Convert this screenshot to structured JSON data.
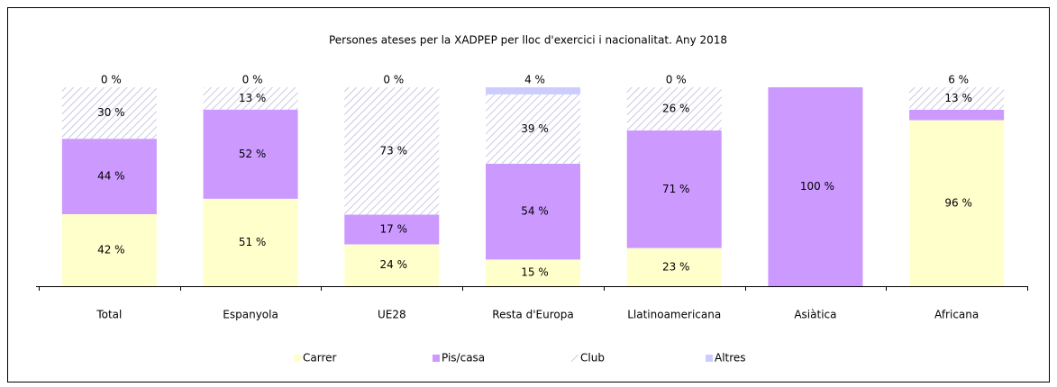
{
  "chart_data": {
    "type": "bar",
    "stacked": true,
    "normalize": true,
    "title": "Persones ateses per la XADPEP per lloc d'exercici i nacionalitat. Any 2018",
    "categories": [
      "Total",
      "Espanyola",
      "UE28",
      "Resta d'Europa",
      "Llatinoamericana",
      "Asiàtica",
      "Africana"
    ],
    "series": [
      {
        "name": "Carrer",
        "color": "#ffffcc",
        "values": [
          42,
          51,
          24,
          15,
          23,
          null,
          96
        ],
        "value_labels": [
          "42 %",
          "51 %",
          "24 %",
          "15 %",
          "23 %",
          null,
          "96 %"
        ]
      },
      {
        "name": "Pis/casa",
        "color": "#cc99ff",
        "values": [
          44,
          52,
          17,
          54,
          71,
          100,
          6
        ],
        "value_labels": [
          "44 %",
          "52 %",
          "17 %",
          "54 %",
          "71 %",
          "100 %",
          "6 %"
        ]
      },
      {
        "name": "Club",
        "color": "#b8b8dc",
        "hatch": true,
        "values": [
          30,
          13,
          73,
          39,
          26,
          null,
          13
        ],
        "value_labels": [
          "30 %",
          "13 %",
          "73 %",
          "39 %",
          "26 %",
          null,
          "13 %"
        ]
      },
      {
        "name": "Altres",
        "color": "#ccccff",
        "values": [
          0,
          0,
          0,
          4,
          0,
          null,
          null
        ],
        "value_labels": [
          "0 %",
          "0 %",
          "0 %",
          "4 %",
          "0 %",
          null,
          null
        ]
      }
    ],
    "legend": "bottom"
  }
}
